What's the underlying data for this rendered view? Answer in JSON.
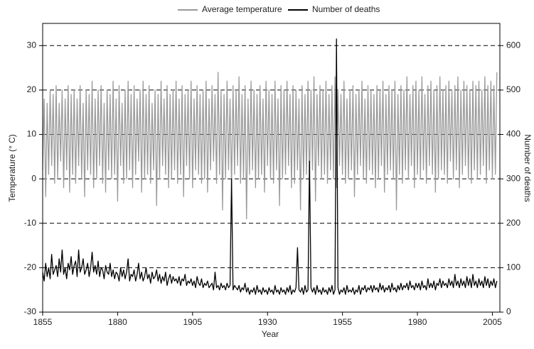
{
  "chart_data": {
    "type": "line",
    "x_label": "Year",
    "y_label": "Temperature (° C)",
    "y2_label": "Number of deaths",
    "xlim": [
      1855,
      2007.5
    ],
    "xticks": [
      1855,
      1880,
      1905,
      1930,
      1955,
      1980,
      2005
    ],
    "ylim": [
      -30,
      35
    ],
    "yticks": [
      -30,
      -20,
      -10,
      0,
      10,
      20,
      30
    ],
    "y2lim": [
      0,
      650
    ],
    "y2ticks": [
      0,
      100,
      200,
      300,
      400,
      500,
      600
    ],
    "grid": true,
    "legend": "top",
    "x": [
      1855,
      1855.5,
      1856,
      1856.5,
      1857,
      1857.5,
      1858,
      1858.5,
      1859,
      1859.5,
      1860,
      1860.5,
      1861,
      1861.5,
      1862,
      1862.5,
      1863,
      1863.5,
      1864,
      1864.5,
      1865,
      1865.5,
      1866,
      1866.5,
      1867,
      1867.5,
      1868,
      1868.5,
      1869,
      1869.5,
      1870,
      1870.5,
      1871,
      1871.5,
      1872,
      1872.5,
      1873,
      1873.5,
      1874,
      1874.5,
      1875,
      1875.5,
      1876,
      1876.5,
      1877,
      1877.5,
      1878,
      1878.5,
      1879,
      1879.5,
      1880,
      1880.5,
      1881,
      1881.5,
      1882,
      1882.5,
      1883,
      1883.5,
      1884,
      1884.5,
      1885,
      1885.5,
      1886,
      1886.5,
      1887,
      1887.5,
      1888,
      1888.5,
      1889,
      1889.5,
      1890,
      1890.5,
      1891,
      1891.5,
      1892,
      1892.5,
      1893,
      1893.5,
      1894,
      1894.5,
      1895,
      1895.5,
      1896,
      1896.5,
      1897,
      1897.5,
      1898,
      1898.5,
      1899,
      1899.5,
      1900,
      1900.5,
      1901,
      1901.5,
      1902,
      1902.5,
      1903,
      1903.5,
      1904,
      1904.5,
      1905,
      1905.5,
      1906,
      1906.5,
      1907,
      1907.5,
      1908,
      1908.5,
      1909,
      1909.5,
      1910,
      1910.5,
      1911,
      1911.5,
      1912,
      1912.5,
      1913,
      1913.5,
      1914,
      1914.5,
      1915,
      1915.5,
      1916,
      1916.5,
      1917,
      1917.5,
      1918,
      1918.5,
      1919,
      1919.5,
      1920,
      1920.5,
      1921,
      1921.5,
      1922,
      1922.5,
      1923,
      1923.5,
      1924,
      1924.5,
      1925,
      1925.5,
      1926,
      1926.5,
      1927,
      1927.5,
      1928,
      1928.5,
      1929,
      1929.5,
      1930,
      1930.5,
      1931,
      1931.5,
      1932,
      1932.5,
      1933,
      1933.5,
      1934,
      1934.5,
      1935,
      1935.5,
      1936,
      1936.5,
      1937,
      1937.5,
      1938,
      1938.5,
      1939,
      1939.5,
      1940,
      1940.5,
      1941,
      1941.5,
      1942,
      1942.5,
      1943,
      1943.5,
      1944,
      1944.5,
      1945,
      1945.5,
      1946,
      1946.5,
      1947,
      1947.5,
      1948,
      1948.5,
      1949,
      1949.5,
      1950,
      1950.5,
      1951,
      1951.5,
      1952,
      1952.5,
      1953,
      1953.5,
      1954,
      1954.5,
      1955,
      1955.5,
      1956,
      1956.5,
      1957,
      1957.5,
      1958,
      1958.5,
      1959,
      1959.5,
      1960,
      1960.5,
      1961,
      1961.5,
      1962,
      1962.5,
      1963,
      1963.5,
      1964,
      1964.5,
      1965,
      1965.5,
      1966,
      1966.5,
      1967,
      1967.5,
      1968,
      1968.5,
      1969,
      1969.5,
      1970,
      1970.5,
      1971,
      1971.5,
      1972,
      1972.5,
      1973,
      1973.5,
      1974,
      1974.5,
      1975,
      1975.5,
      1976,
      1976.5,
      1977,
      1977.5,
      1978,
      1978.5,
      1979,
      1979.5,
      1980,
      1980.5,
      1981,
      1981.5,
      1982,
      1982.5,
      1983,
      1983.5,
      1984,
      1984.5,
      1985,
      1985.5,
      1986,
      1986.5,
      1987,
      1987.5,
      1988,
      1988.5,
      1989,
      1989.5,
      1990,
      1990.5,
      1991,
      1991.5,
      1992,
      1992.5,
      1993,
      1993.5,
      1994,
      1994.5,
      1995,
      1995.5,
      1996,
      1996.5,
      1997,
      1997.5,
      1998,
      1998.5,
      1999,
      1999.5,
      2000,
      2000.5,
      2001,
      2001.5,
      2002,
      2002.5,
      2003,
      2003.5,
      2004,
      2004.5,
      2005,
      2005.5,
      2006,
      2006.5
    ],
    "series": [
      {
        "name": "Average temperature",
        "color": "#9a9a9a",
        "axis": "y",
        "values": [
          2,
          18,
          -4,
          17,
          1,
          20,
          3,
          19,
          -1,
          21,
          0,
          17,
          4,
          20,
          -2,
          18,
          2,
          21,
          -3,
          19,
          1,
          20,
          -1,
          18,
          3,
          21,
          0,
          17,
          -4,
          20,
          2,
          19,
          1,
          22,
          -2,
          18,
          0,
          20,
          3,
          21,
          -1,
          17,
          -3,
          20,
          2,
          19,
          0,
          22,
          1,
          18,
          -5,
          21,
          3,
          17,
          -1,
          20,
          0,
          22,
          2,
          19,
          -2,
          21,
          1,
          18,
          4,
          20,
          -3,
          22,
          0,
          19,
          1,
          21,
          -1,
          17,
          2,
          20,
          -6,
          19,
          0,
          22,
          3,
          18,
          1,
          21,
          -2,
          19,
          0,
          20,
          2,
          22,
          -1,
          18,
          1,
          21,
          -4,
          19,
          3,
          20,
          0,
          22,
          -2,
          18,
          2,
          21,
          1,
          19,
          -1,
          20,
          0,
          22,
          -3,
          18,
          2,
          21,
          4,
          19,
          -1,
          24,
          1,
          20,
          -7,
          19,
          0,
          22,
          2,
          18,
          -2,
          21,
          1,
          20,
          3,
          23,
          -1,
          19,
          0,
          21,
          -9,
          18,
          1,
          22,
          2,
          20,
          -2,
          19,
          0,
          21,
          1,
          18,
          -3,
          22,
          3,
          20,
          0,
          19,
          -1,
          22,
          2,
          18,
          -6,
          21,
          0,
          20,
          1,
          22,
          3,
          19,
          -2,
          21,
          -1,
          20,
          2,
          18,
          -7,
          21,
          0,
          19,
          1,
          22,
          -1,
          20,
          2,
          23,
          -5,
          19,
          3,
          21,
          0,
          20,
          1,
          22,
          -1,
          19,
          2,
          21,
          0,
          23,
          -2,
          20,
          3,
          19,
          1,
          22,
          -1,
          18,
          0,
          20,
          2,
          21,
          -4,
          19,
          1,
          20,
          3,
          22,
          0,
          18,
          -1,
          21,
          2,
          20,
          1,
          19,
          -2,
          21,
          0,
          20,
          3,
          22,
          -3,
          19,
          1,
          21,
          2,
          20,
          0,
          22,
          -7,
          19,
          1,
          21,
          -1,
          20,
          2,
          23,
          0,
          19,
          3,
          21,
          -2,
          22,
          1,
          20,
          0,
          23,
          2,
          19,
          -1,
          21,
          3,
          22,
          1,
          20,
          -3,
          21,
          0,
          23,
          2,
          20,
          1,
          21,
          -1,
          22,
          4,
          20,
          0,
          21,
          2,
          23,
          -2,
          20,
          1,
          22,
          3,
          21,
          0,
          20,
          -1,
          22,
          2,
          21,
          0,
          22,
          1,
          20,
          3,
          23,
          -1,
          21,
          2,
          22,
          0,
          21,
          1,
          24
        ]
      },
      {
        "name": "Number of deaths",
        "color": "#000000",
        "axis": "y2",
        "values": [
          90,
          70,
          110,
          80,
          100,
          75,
          130,
          85,
          95,
          105,
          80,
          120,
          90,
          140,
          85,
          100,
          75,
          110,
          95,
          125,
          85,
          105,
          115,
          80,
          140,
          90,
          100,
          120,
          85,
          95,
          110,
          80,
          100,
          135,
          90,
          105,
          85,
          115,
          80,
          100,
          95,
          75,
          105,
          90,
          85,
          110,
          80,
          95,
          75,
          90,
          85,
          70,
          100,
          80,
          95,
          75,
          90,
          120,
          70,
          85,
          80,
          95,
          70,
          85,
          110,
          75,
          90,
          70,
          80,
          100,
          75,
          85,
          65,
          90,
          75,
          80,
          95,
          70,
          85,
          65,
          80,
          70,
          90,
          60,
          75,
          85,
          65,
          80,
          70,
          75,
          65,
          80,
          60,
          75,
          70,
          85,
          60,
          70,
          65,
          75,
          60,
          70,
          55,
          80,
          65,
          60,
          75,
          55,
          65,
          60,
          70,
          55,
          60,
          65,
          50,
          90,
          55,
          60,
          50,
          65,
          55,
          60,
          50,
          65,
          55,
          60,
          300,
          50,
          60,
          55,
          50,
          60,
          45,
          55,
          50,
          65,
          45,
          55,
          40,
          50,
          45,
          55,
          40,
          60,
          45,
          50,
          40,
          55,
          45,
          50,
          40,
          55,
          45,
          50,
          40,
          60,
          45,
          50,
          40,
          55,
          45,
          50,
          40,
          55,
          45,
          60,
          40,
          50,
          45,
          55,
          145,
          50,
          45,
          55,
          40,
          60,
          45,
          50,
          340,
          55,
          45,
          55,
          40,
          60,
          45,
          50,
          40,
          55,
          45,
          50,
          40,
          55,
          45,
          60,
          40,
          50,
          615,
          55,
          40,
          50,
          45,
          55,
          40,
          60,
          45,
          50,
          45,
          55,
          40,
          50,
          45,
          60,
          40,
          55,
          50,
          60,
          45,
          55,
          50,
          60,
          45,
          60,
          50,
          55,
          45,
          65,
          50,
          60,
          45,
          55,
          50,
          60,
          45,
          65,
          50,
          55,
          45,
          60,
          50,
          65,
          50,
          60,
          55,
          65,
          50,
          70,
          55,
          60,
          50,
          65,
          55,
          65,
          50,
          70,
          55,
          60,
          50,
          75,
          55,
          65,
          55,
          70,
          50,
          65,
          60,
          75,
          55,
          70,
          60,
          65,
          55,
          75,
          60,
          70,
          55,
          85,
          60,
          70,
          55,
          75,
          60,
          70,
          55,
          80,
          60,
          75,
          55,
          85,
          60,
          70,
          55,
          75,
          60,
          70,
          55,
          80,
          60,
          75,
          55,
          70,
          60,
          75,
          55,
          70
        ]
      }
    ]
  }
}
